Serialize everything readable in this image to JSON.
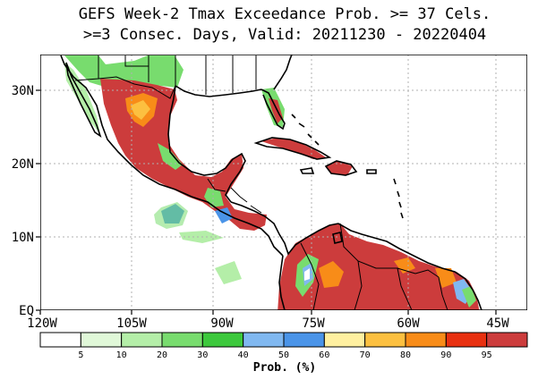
{
  "title_line1": "GEFS Week-2 Tmax Exceedance Prob. >= 37 Cels.",
  "title_line2": ">=3 Consec. Days, Valid: 20211230 - 20220404",
  "lat_labels": [
    "30N",
    "20N",
    "10N",
    "EQ"
  ],
  "lon_labels": [
    "120W",
    "105W",
    "90W",
    "75W",
    "60W",
    "45W"
  ],
  "legend": {
    "tick_labels": [
      "5",
      "10",
      "20",
      "30",
      "40",
      "50",
      "60",
      "70",
      "80",
      "90",
      "95"
    ],
    "colors": [
      "#ffffff",
      "#e0f8d8",
      "#b4eea8",
      "#78dc6e",
      "#3cc83c",
      "#80b8f0",
      "#4a94e8",
      "#fff0a0",
      "#fcc040",
      "#f88c18",
      "#e83010",
      "#cc3c3c"
    ],
    "title": "Prob. (%)"
  },
  "colors": {
    "land_outline": "#000000",
    "grid": "#b0b0b0"
  }
}
